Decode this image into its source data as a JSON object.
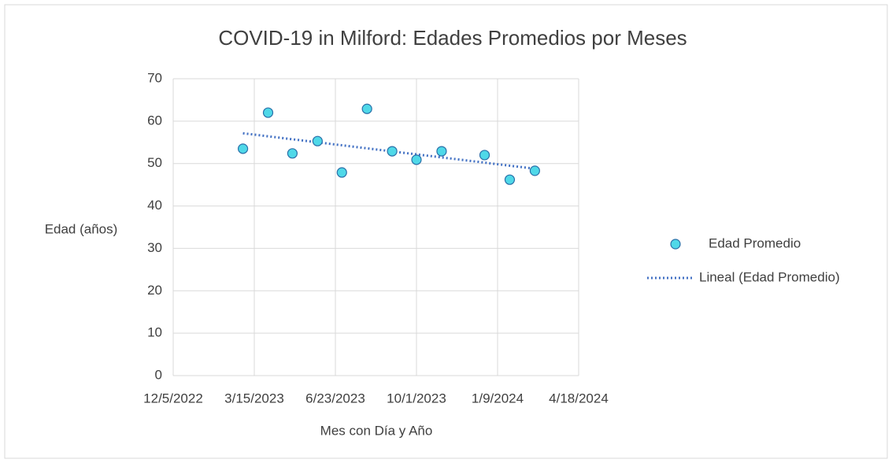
{
  "chart_data": {
    "type": "scatter",
    "title": "COVID-19 in Milford: Edades Promedios por Meses",
    "x_label": "Mes con Día y Año",
    "y_label": "Edad (años)",
    "series": [
      {
        "name": "Edad Promedio",
        "color": "#4fd8e8",
        "edge_color": "#2a6fa8",
        "x": [
          "3/1/2023",
          "4/1/2023",
          "5/1/2023",
          "6/1/2023",
          "7/1/2023",
          "8/1/2023",
          "9/1/2023",
          "10/1/2023",
          "11/1/2023",
          "12/24/2023",
          "1/24/2024",
          "2/24/2024"
        ],
        "values": [
          53.5,
          62,
          52.4,
          55.3,
          47.9,
          62.9,
          52.9,
          50.9,
          52.9,
          52,
          46.2,
          48.3
        ]
      }
    ],
    "trendline": {
      "name": "Lineal (Edad Promedio)",
      "color": "#4472c4"
    },
    "xlim": [
      "12/5/2022",
      "4/18/2024"
    ],
    "xticks": [
      "12/5/2022",
      "3/15/2023",
      "6/23/2023",
      "10/1/2023",
      "1/9/2024",
      "4/18/2024"
    ],
    "ylim": [
      0,
      70
    ],
    "yticks": [
      0,
      10,
      20,
      30,
      40,
      50,
      60,
      70
    ],
    "grid": true,
    "legend": "right"
  }
}
